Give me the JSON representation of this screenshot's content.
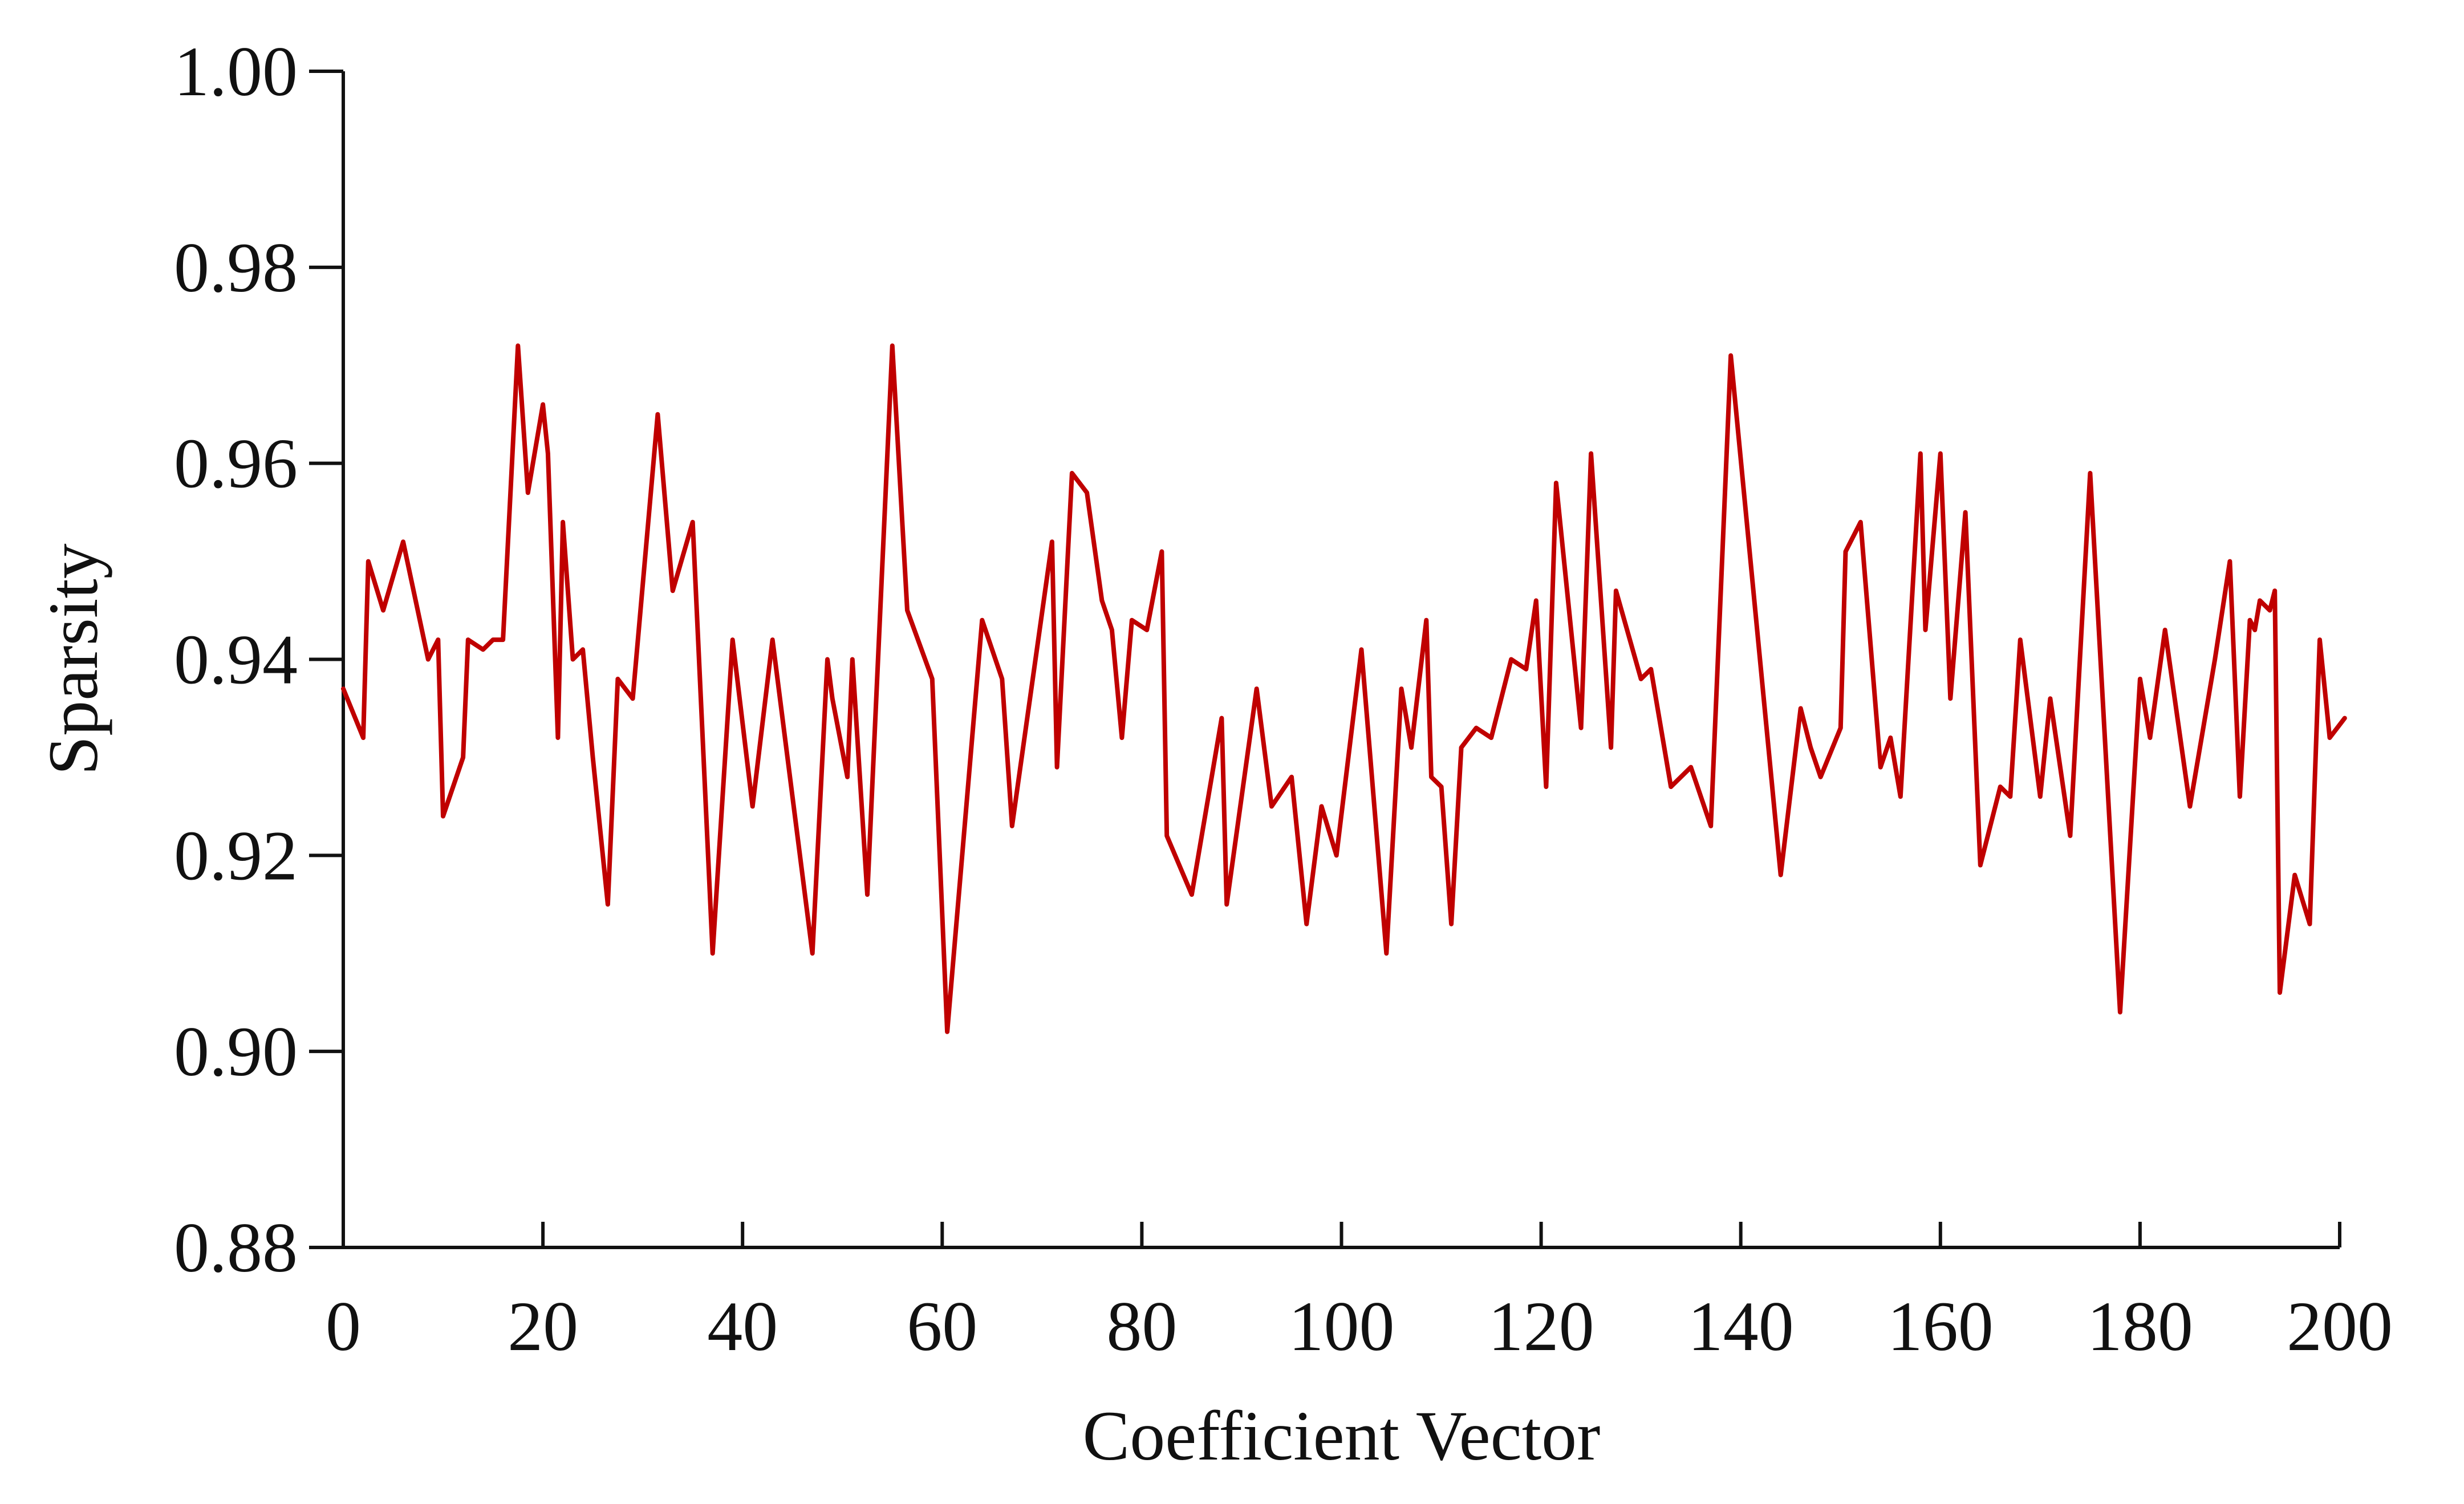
{
  "chart_data": {
    "type": "line",
    "title": "",
    "xlabel": "Coefficient Vector",
    "ylabel": "Sparsity",
    "xlim": [
      0,
      200
    ],
    "ylim": [
      0.88,
      1.0
    ],
    "xticks": [
      "0",
      "20",
      "40",
      "60",
      "80",
      "100",
      "120",
      "140",
      "160",
      "180",
      "200"
    ],
    "yticks": [
      "0.88",
      "0.90",
      "0.92",
      "0.94",
      "0.96",
      "0.98",
      "1.00"
    ],
    "grid": false,
    "legend": "none",
    "series": [
      {
        "color": "#c00000",
        "x": [
          0,
          2,
          2.5,
          4,
          6,
          8.5,
          9.5,
          10,
          12,
          12.5,
          14,
          15,
          16,
          17.5,
          18.5,
          20,
          20.5,
          21.5,
          22,
          23,
          24,
          25,
          26.5,
          27.5,
          29,
          31.5,
          33,
          35,
          37,
          39,
          41,
          43,
          45,
          47,
          48.5,
          49,
          50.5,
          51,
          52.5,
          55,
          56.5,
          59,
          60.5,
          64,
          66,
          67,
          71,
          71.5,
          73,
          74.5,
          76,
          77,
          78,
          79,
          80.5,
          82,
          82.5,
          85,
          88,
          88.5,
          91.5,
          93,
          95,
          96.5,
          98,
          99.5,
          102,
          104.5,
          106,
          107,
          108.5,
          109,
          110,
          111,
          112,
          113.5,
          115,
          117,
          118.5,
          119.5,
          120.5,
          121.5,
          124,
          125,
          127,
          127.5,
          130,
          131,
          133,
          135,
          137,
          139,
          144,
          146,
          147,
          148,
          150,
          150.5,
          152,
          154,
          155,
          156,
          158,
          158.5,
          160,
          161,
          162.5,
          164,
          166,
          167,
          168,
          170,
          171,
          173,
          175,
          178,
          180,
          181,
          182.5,
          185,
          187.5,
          189,
          190,
          191,
          191.5,
          192,
          193,
          193.5,
          194,
          195.5,
          197,
          198,
          199,
          200.5
        ],
        "y": [
          0.937,
          0.932,
          0.95,
          0.945,
          0.952,
          0.94,
          0.942,
          0.924,
          0.93,
          0.942,
          0.941,
          0.942,
          0.942,
          0.972,
          0.957,
          0.966,
          0.961,
          0.932,
          0.954,
          0.94,
          0.941,
          0.93,
          0.915,
          0.938,
          0.936,
          0.965,
          0.947,
          0.954,
          0.91,
          0.942,
          0.925,
          0.942,
          0.926,
          0.91,
          0.94,
          0.936,
          0.928,
          0.94,
          0.916,
          0.972,
          0.945,
          0.938,
          0.902,
          0.944,
          0.938,
          0.923,
          0.952,
          0.929,
          0.959,
          0.957,
          0.946,
          0.943,
          0.932,
          0.944,
          0.943,
          0.951,
          0.922,
          0.916,
          0.934,
          0.915,
          0.937,
          0.925,
          0.928,
          0.913,
          0.925,
          0.92,
          0.941,
          0.91,
          0.937,
          0.931,
          0.944,
          0.928,
          0.927,
          0.913,
          0.931,
          0.933,
          0.932,
          0.94,
          0.939,
          0.946,
          0.927,
          0.958,
          0.933,
          0.961,
          0.931,
          0.947,
          0.938,
          0.939,
          0.927,
          0.929,
          0.923,
          0.971,
          0.918,
          0.935,
          0.931,
          0.928,
          0.933,
          0.951,
          0.954,
          0.929,
          0.932,
          0.926,
          0.961,
          0.943,
          0.961,
          0.936,
          0.955,
          0.919,
          0.927,
          0.926,
          0.942,
          0.926,
          0.936,
          0.922,
          0.959,
          0.904,
          0.938,
          0.932,
          0.943,
          0.925,
          0.94,
          0.95,
          0.926,
          0.944,
          0.943,
          0.946,
          0.945,
          0.947,
          0.906,
          0.918,
          0.913,
          0.942,
          0.932,
          0.934
        ]
      }
    ]
  }
}
